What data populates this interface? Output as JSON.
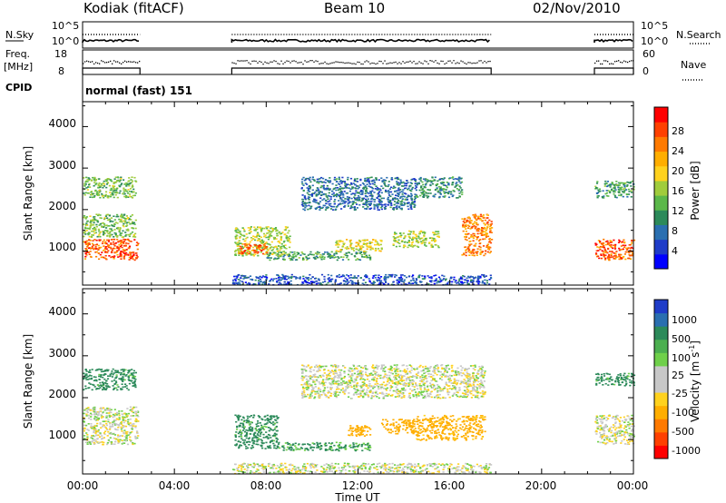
{
  "header": {
    "radar": "Kodiak (fitACF)",
    "beam": "Beam 10",
    "date": "02/Nov/2010"
  },
  "strip": {
    "nsky_label": "N.Sky",
    "nsky_ticks": [
      "10^5",
      "10^0"
    ],
    "nsearch_label": "N.Search",
    "nsearch_ticks": [
      "10^5",
      "10^0"
    ],
    "freq_label": "Freq.",
    "freq_unit": "[MHz]",
    "freq_ticks": [
      "18",
      "8"
    ],
    "nave_label": "Nave",
    "nave_ticks": [
      "60",
      "0"
    ],
    "cpid_label": "CPID",
    "cpid_value": "normal (fast) 151",
    "coverage_hours": [
      [
        0.0,
        2.5
      ],
      [
        6.5,
        17.8
      ],
      [
        22.3,
        24.0
      ]
    ]
  },
  "axes": {
    "ylabel": "Slant Range [km]",
    "yticks": [
      "1000",
      "2000",
      "3000",
      "4000"
    ],
    "xlabel": "Time UT",
    "xticks": [
      "00:00",
      "04:00",
      "08:00",
      "12:00",
      "16:00",
      "20:00",
      "00:00"
    ],
    "xlim_hours": [
      0,
      24
    ],
    "ylim_km": [
      180,
      4600
    ]
  },
  "power_colorbar": {
    "label": "Power [dB]",
    "ticks": [
      "4",
      "8",
      "12",
      "16",
      "20",
      "24",
      "28"
    ],
    "colors": [
      "#0000ff",
      "#1f3cc8",
      "#2a6fb0",
      "#2c8a5a",
      "#5bb84a",
      "#a0cc3c",
      "#ffd21e",
      "#ffae00",
      "#ff7a00",
      "#ff4000",
      "#ff0000"
    ]
  },
  "velocity_colorbar": {
    "label": "Velocity [m s",
    "label_sup": "-1",
    "label_end": "]",
    "ticks": [
      "1000",
      "500",
      "100",
      "25",
      "-25",
      "-100",
      "-500",
      "-1000"
    ],
    "colors": [
      "#1f3cc8",
      "#2a6fb0",
      "#2c8a5a",
      "#4caf50",
      "#6fd04a",
      "#c8c8c8",
      "#c8c8c8",
      "#ffd21e",
      "#ffae00",
      "#ff7a00",
      "#ff4000",
      "#ff0000"
    ]
  },
  "chart_data": {
    "type": "heatmap",
    "x_unit": "hours UT",
    "y_unit": "km",
    "power_panel": {
      "ylim": [
        180,
        4600
      ],
      "regions": [
        {
          "t": [
            0.0,
            2.4
          ],
          "r": [
            800,
            1300
          ],
          "level": 26
        },
        {
          "t": [
            0.0,
            2.3
          ],
          "r": [
            1350,
            1900
          ],
          "level": 14
        },
        {
          "t": [
            0.0,
            2.3
          ],
          "r": [
            2300,
            2800
          ],
          "level": 14
        },
        {
          "t": [
            6.6,
            9.0
          ],
          "r": [
            900,
            1600
          ],
          "level": 16
        },
        {
          "t": [
            6.8,
            8.0
          ],
          "r": [
            950,
            1200
          ],
          "level": 26
        },
        {
          "t": [
            8.0,
            12.5
          ],
          "r": [
            800,
            1000
          ],
          "level": 12
        },
        {
          "t": [
            9.5,
            14.5
          ],
          "r": [
            2000,
            2800
          ],
          "level": 8
        },
        {
          "t": [
            11.0,
            13.0
          ],
          "r": [
            1000,
            1300
          ],
          "level": 18
        },
        {
          "t": [
            13.5,
            15.5
          ],
          "r": [
            1100,
            1500
          ],
          "level": 16
        },
        {
          "t": [
            14.5,
            16.5
          ],
          "r": [
            2300,
            2800
          ],
          "level": 10
        },
        {
          "t": [
            16.5,
            17.8
          ],
          "r": [
            900,
            1900
          ],
          "level": 24
        },
        {
          "t": [
            6.5,
            17.8
          ],
          "r": [
            200,
            450
          ],
          "level": 6
        },
        {
          "t": [
            22.3,
            24.0
          ],
          "r": [
            800,
            1300
          ],
          "level": 26
        },
        {
          "t": [
            22.3,
            24.0
          ],
          "r": [
            2300,
            2700
          ],
          "level": 12
        }
      ]
    },
    "velocity_panel": {
      "ylim": [
        180,
        4600
      ],
      "regions": [
        {
          "t": [
            0.0,
            2.4
          ],
          "r": [
            900,
            1800
          ],
          "v": 0
        },
        {
          "t": [
            0.0,
            2.3
          ],
          "r": [
            2200,
            2700
          ],
          "v": 150
        },
        {
          "t": [
            6.6,
            8.5
          ],
          "r": [
            800,
            1600
          ],
          "v": 150
        },
        {
          "t": [
            8.5,
            12.5
          ],
          "r": [
            750,
            950
          ],
          "v": 120
        },
        {
          "t": [
            9.5,
            14.5
          ],
          "r": [
            2000,
            2800
          ],
          "v": 0
        },
        {
          "t": [
            11.5,
            12.5
          ],
          "r": [
            1100,
            1350
          ],
          "v": -300
        },
        {
          "t": [
            13.0,
            14.5
          ],
          "r": [
            1150,
            1500
          ],
          "v": -400
        },
        {
          "t": [
            14.5,
            17.5
          ],
          "r": [
            1000,
            1600
          ],
          "v": -150
        },
        {
          "t": [
            14.5,
            17.5
          ],
          "r": [
            2000,
            2800
          ],
          "v": 0
        },
        {
          "t": [
            6.5,
            17.8
          ],
          "r": [
            200,
            450
          ],
          "v": 0
        },
        {
          "t": [
            22.3,
            24.0
          ],
          "r": [
            900,
            1600
          ],
          "v": 0
        },
        {
          "t": [
            22.3,
            24.0
          ],
          "r": [
            2300,
            2600
          ],
          "v": 150
        }
      ]
    }
  }
}
